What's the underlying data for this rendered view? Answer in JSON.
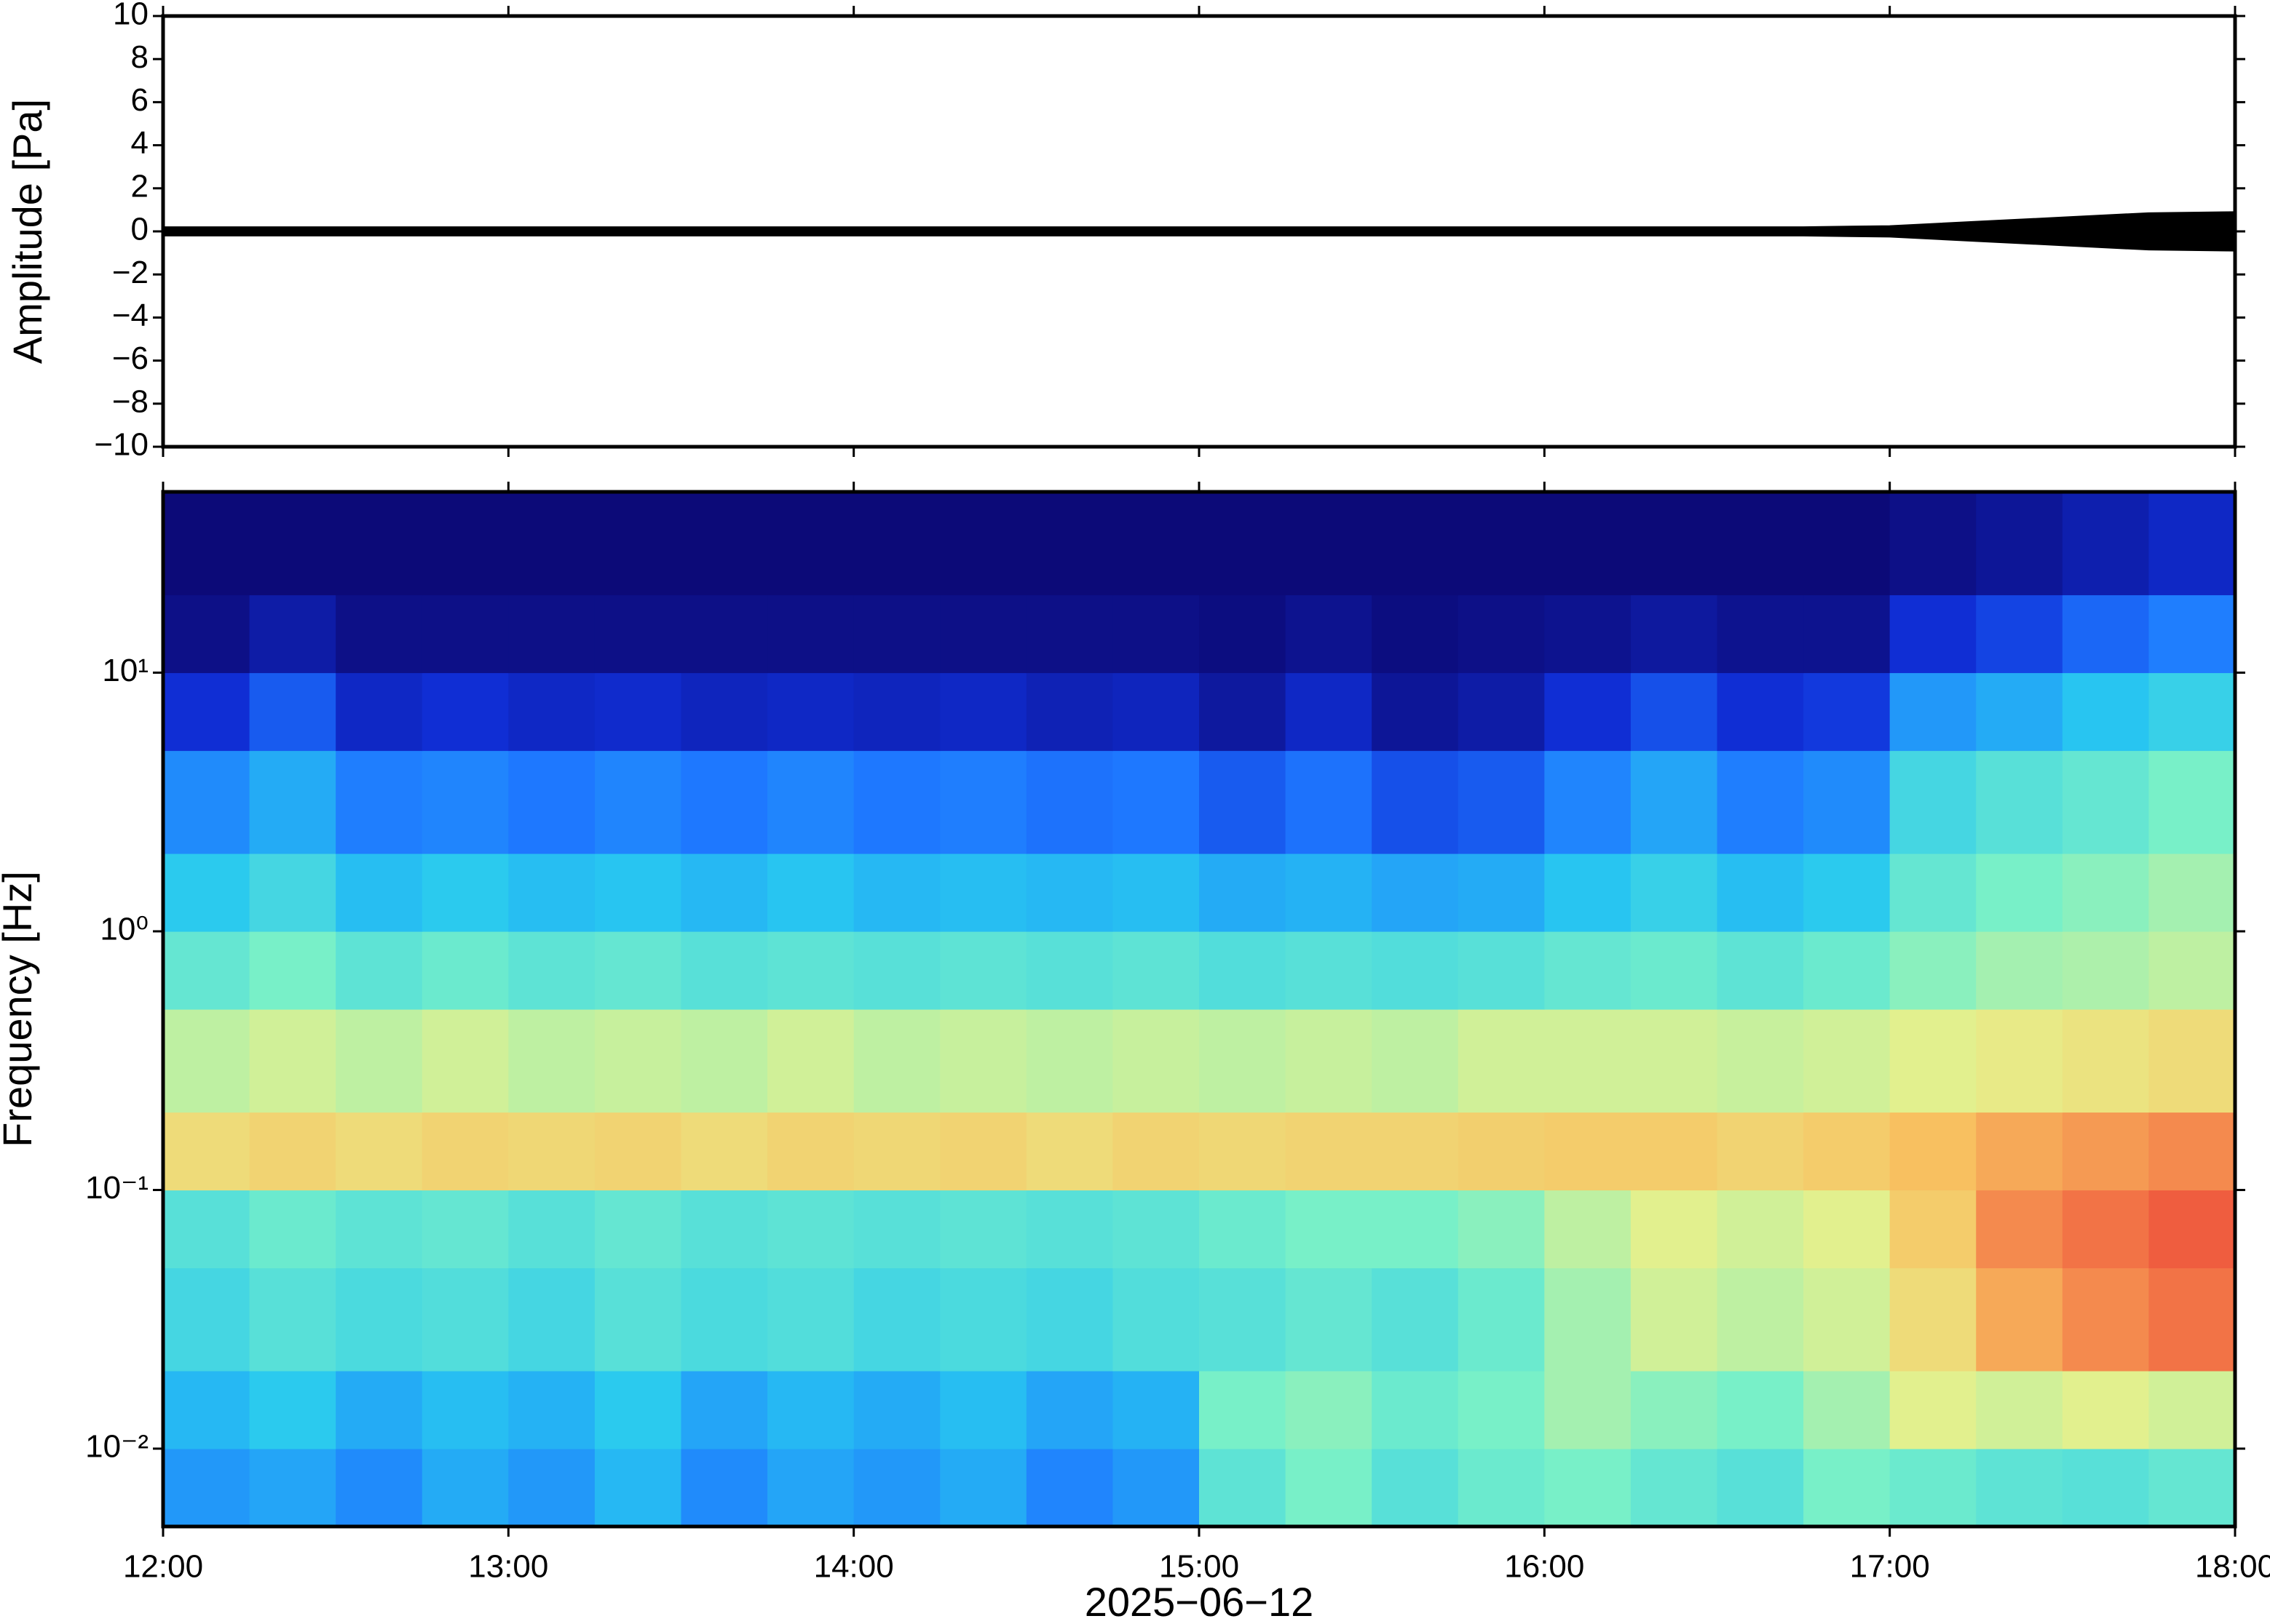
{
  "chart_data": [
    {
      "type": "envelope",
      "ylabel": "Amplitude [Pa]",
      "color": "#000000",
      "xlim": [
        "12:00",
        "18:00"
      ],
      "ylim": [
        -10,
        10
      ],
      "yticks": [
        {
          "value": -10,
          "label": "−10"
        },
        {
          "value": -8,
          "label": "−8"
        },
        {
          "value": -6,
          "label": "−6"
        },
        {
          "value": -4,
          "label": "−4"
        },
        {
          "value": -2,
          "label": "−2"
        },
        0,
        2,
        4,
        6,
        8,
        10
      ],
      "x": [
        "12:00",
        "12:15",
        "12:30",
        "12:45",
        "13:00",
        "13:15",
        "13:30",
        "13:45",
        "14:00",
        "14:15",
        "14:30",
        "14:45",
        "15:00",
        "15:15",
        "15:30",
        "15:45",
        "16:00",
        "16:15",
        "16:30",
        "16:45",
        "17:00",
        "17:15",
        "17:30",
        "17:45",
        "18:00"
      ],
      "upper": [
        0.2,
        0.2,
        0.2,
        0.2,
        0.2,
        0.2,
        0.2,
        0.2,
        0.2,
        0.2,
        0.2,
        0.2,
        0.2,
        0.2,
        0.2,
        0.2,
        0.2,
        0.2,
        0.2,
        0.2,
        0.25,
        0.45,
        0.65,
        0.85,
        0.9
      ],
      "lower": [
        -0.2,
        -0.2,
        -0.2,
        -0.2,
        -0.2,
        -0.2,
        -0.2,
        -0.2,
        -0.2,
        -0.2,
        -0.2,
        -0.2,
        -0.2,
        -0.2,
        -0.2,
        -0.2,
        -0.2,
        -0.2,
        -0.2,
        -0.2,
        -0.25,
        -0.45,
        -0.65,
        -0.85,
        -0.9
      ]
    },
    {
      "type": "heatmap",
      "ylabel": "Frequency [Hz]",
      "xlabel": "2025−06−12",
      "log_y": true,
      "xlim": [
        "12:00",
        "18:00"
      ],
      "xticks": [
        "12:00",
        "13:00",
        "14:00",
        "15:00",
        "16:00",
        "17:00",
        "18:00"
      ],
      "ylim": [
        0.005,
        50
      ],
      "yticks": [
        {
          "value": 0.01,
          "label": "10⁻²"
        },
        {
          "value": 0.1,
          "label": "10⁻¹"
        },
        {
          "value": 1,
          "label": "10⁰"
        },
        {
          "value": 10,
          "label": "10¹"
        }
      ],
      "zlim": [
        0,
        1
      ],
      "colormap": [
        "#0c0a78",
        "#1030d8",
        "#1e78ff",
        "#28c8f0",
        "#78f0c8",
        "#e6f08c",
        "#f8c060",
        "#f06040",
        "#d02020"
      ],
      "xbins": [
        "12:00",
        "12:15",
        "12:30",
        "12:45",
        "13:00",
        "13:15",
        "13:30",
        "13:45",
        "14:00",
        "14:15",
        "14:30",
        "14:45",
        "15:00",
        "15:15",
        "15:30",
        "15:45",
        "16:00",
        "16:15",
        "16:30",
        "16:45",
        "17:00",
        "17:15",
        "17:30",
        "17:45",
        "18:00"
      ],
      "ybins": [
        0.005,
        0.01,
        0.02,
        0.05,
        0.1,
        0.2,
        0.5,
        1,
        2,
        5,
        10,
        20,
        50
      ],
      "values": [
        [
          0.3,
          0.32,
          0.28,
          0.33,
          0.3,
          0.35,
          0.28,
          0.32,
          0.3,
          0.33,
          0.27,
          0.3,
          0.46,
          0.5,
          0.45,
          0.48,
          0.5,
          0.47,
          0.45,
          0.5,
          0.48,
          0.46,
          0.45,
          0.47
        ],
        [
          0.35,
          0.38,
          0.33,
          0.36,
          0.34,
          0.38,
          0.32,
          0.35,
          0.33,
          0.36,
          0.32,
          0.34,
          0.5,
          0.52,
          0.48,
          0.5,
          0.55,
          0.52,
          0.5,
          0.55,
          0.62,
          0.6,
          0.62,
          0.6
        ],
        [
          0.42,
          0.45,
          0.43,
          0.44,
          0.42,
          0.45,
          0.43,
          0.44,
          0.42,
          0.43,
          0.42,
          0.44,
          0.45,
          0.47,
          0.45,
          0.48,
          0.55,
          0.6,
          0.58,
          0.6,
          0.68,
          0.78,
          0.82,
          0.85
        ],
        [
          0.45,
          0.48,
          0.46,
          0.47,
          0.45,
          0.47,
          0.45,
          0.46,
          0.45,
          0.46,
          0.45,
          0.46,
          0.48,
          0.5,
          0.5,
          0.52,
          0.58,
          0.62,
          0.6,
          0.62,
          0.72,
          0.82,
          0.85,
          0.88
        ],
        [
          0.68,
          0.7,
          0.68,
          0.7,
          0.69,
          0.7,
          0.68,
          0.7,
          0.69,
          0.7,
          0.68,
          0.7,
          0.69,
          0.7,
          0.7,
          0.71,
          0.72,
          0.72,
          0.7,
          0.72,
          0.75,
          0.78,
          0.8,
          0.82
        ],
        [
          0.58,
          0.6,
          0.58,
          0.6,
          0.58,
          0.59,
          0.58,
          0.6,
          0.58,
          0.59,
          0.58,
          0.59,
          0.58,
          0.59,
          0.58,
          0.6,
          0.6,
          0.6,
          0.59,
          0.6,
          0.62,
          0.64,
          0.66,
          0.68
        ],
        [
          0.47,
          0.5,
          0.46,
          0.48,
          0.46,
          0.47,
          0.45,
          0.46,
          0.45,
          0.46,
          0.45,
          0.46,
          0.44,
          0.45,
          0.44,
          0.45,
          0.47,
          0.48,
          0.46,
          0.48,
          0.52,
          0.55,
          0.56,
          0.58
        ],
        [
          0.38,
          0.42,
          0.36,
          0.38,
          0.36,
          0.37,
          0.35,
          0.37,
          0.35,
          0.36,
          0.35,
          0.36,
          0.33,
          0.34,
          0.32,
          0.33,
          0.37,
          0.4,
          0.36,
          0.38,
          0.47,
          0.5,
          0.52,
          0.55
        ],
        [
          0.28,
          0.33,
          0.26,
          0.27,
          0.25,
          0.27,
          0.25,
          0.27,
          0.25,
          0.26,
          0.24,
          0.25,
          0.2,
          0.24,
          0.18,
          0.2,
          0.27,
          0.32,
          0.26,
          0.28,
          0.42,
          0.45,
          0.47,
          0.5
        ],
        [
          0.12,
          0.2,
          0.1,
          0.12,
          0.1,
          0.11,
          0.09,
          0.1,
          0.09,
          0.1,
          0.08,
          0.09,
          0.05,
          0.1,
          0.04,
          0.06,
          0.12,
          0.18,
          0.12,
          0.14,
          0.3,
          0.33,
          0.37,
          0.4
        ],
        [
          0.02,
          0.06,
          0.02,
          0.02,
          0.02,
          0.02,
          0.02,
          0.02,
          0.02,
          0.02,
          0.02,
          0.02,
          0.01,
          0.03,
          0.01,
          0.02,
          0.03,
          0.05,
          0.03,
          0.03,
          0.12,
          0.16,
          0.22,
          0.26
        ],
        [
          0,
          0,
          0,
          0,
          0,
          0,
          0,
          0,
          0,
          0,
          0,
          0,
          0,
          0,
          0,
          0,
          0,
          0,
          0,
          0,
          0.02,
          0.04,
          0.07,
          0.1
        ]
      ]
    }
  ]
}
